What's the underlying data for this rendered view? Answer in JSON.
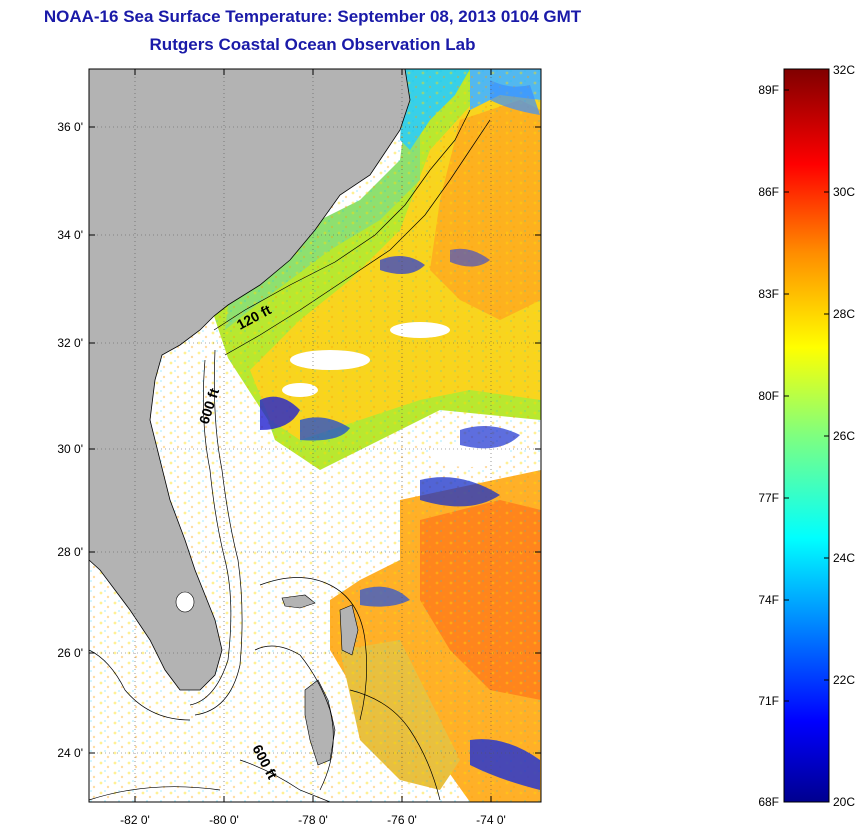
{
  "header": {
    "title": "NOAA-16 Sea Surface Temperature:  September 08, 2013 0104 GMT",
    "subtitle": "Rutgers Coastal Ocean Observation Lab"
  },
  "map": {
    "lat_labels": [
      "36 0'",
      "34 0'",
      "32 0'",
      "30 0'",
      "28 0'",
      "26 0'",
      "24 0'"
    ],
    "lon_labels": [
      "-82 0'",
      "-80 0'",
      "-78 0'",
      "-76 0'",
      "-74 0'"
    ],
    "lat_range": [
      23,
      37
    ],
    "lon_range": [
      -83,
      -73
    ],
    "contour_labels": [
      "120 ft",
      "600 ft",
      "600 ft"
    ],
    "colors": {
      "land": "#b3b3b3",
      "nodata": "#ffffff",
      "grid": "dotted"
    }
  },
  "colorbar": {
    "celsius_labels": [
      "32C",
      "30C",
      "28C",
      "26C",
      "24C",
      "22C",
      "20C"
    ],
    "fahrenheit_labels": [
      "89F",
      "86F",
      "83F",
      "80F",
      "77F",
      "74F",
      "71F",
      "68F"
    ],
    "range_c": [
      20,
      32
    ],
    "colormap": "jet"
  }
}
